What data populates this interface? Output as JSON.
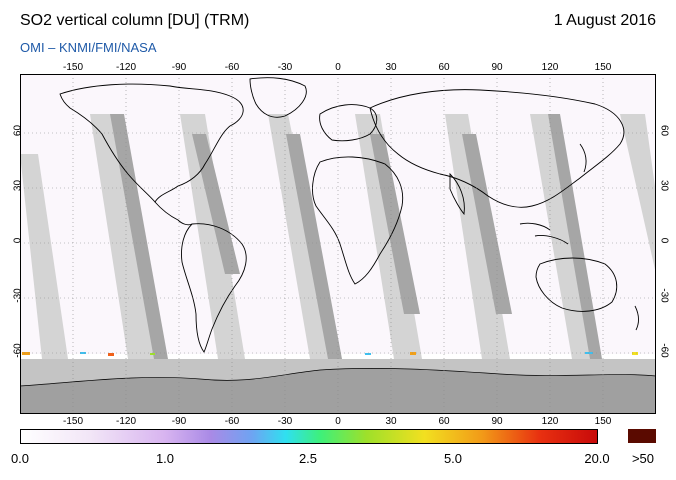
{
  "header": {
    "title": "SO2 vertical column [DU] (TRM)",
    "date": "1 August 2016",
    "credit": "OMI  –  KNMI/FMI/NASA"
  },
  "map": {
    "lon_ticks": [
      "-150",
      "-120",
      "-90",
      "-60",
      "-30",
      "0",
      "30",
      "60",
      "90",
      "120",
      "150"
    ],
    "lat_ticks": [
      "60",
      "30",
      "0",
      "-30",
      "-60"
    ],
    "colors": {
      "land_outline": "#000000",
      "swath_light": "#d3d3d3",
      "swath_dark": "#a8a8a8",
      "polar_fill": "#a9a9a9",
      "grid": "#888888"
    }
  },
  "colorbar": {
    "labels": [
      "0.0",
      "1.0",
      "2.5",
      "5.0",
      "20.0"
    ],
    "overflow_label": ">50",
    "overflow_color": "#5a0a00",
    "gradient": [
      "#ffffff",
      "#f2e6f7",
      "#d8b4f0",
      "#a98ae6",
      "#6fa3f2",
      "#2fe0f0",
      "#3ef07a",
      "#9ee02a",
      "#f2e020",
      "#f29a18",
      "#e83010",
      "#c80a0a"
    ]
  }
}
